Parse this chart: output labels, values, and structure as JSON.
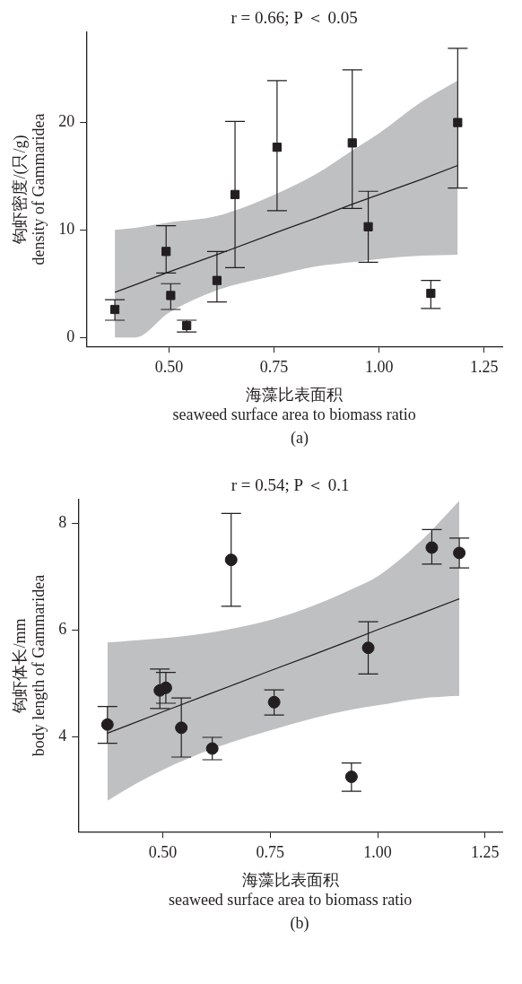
{
  "chart_data": [
    {
      "type": "scatter",
      "title": "r = 0.66; P ＜ 0.05",
      "xlabel": "海藻比表面积\nseaweed surface area to biomass ratio",
      "ylabel": "钩虾密度/(只/g)\ndensity of Gammaridea",
      "annotations": [
        "(a)"
      ],
      "legend": false,
      "grid": false,
      "xlim": [
        0.303,
        1.293
      ],
      "ylim": [
        -0.84,
        28.4
      ],
      "xticks": [
        {
          "value": 0.5,
          "label": "0.50"
        },
        {
          "value": 0.75,
          "label": "0.75"
        },
        {
          "value": 1.0,
          "label": "1.00"
        },
        {
          "value": 1.25,
          "label": "1.25"
        }
      ],
      "yticks": [
        0,
        10,
        20
      ],
      "series": [
        {
          "marker": "square",
          "color": "#231f20",
          "x": [
            0.371,
            0.493,
            0.504,
            0.542,
            0.614,
            0.657,
            0.757,
            0.936,
            0.974,
            1.123,
            1.187
          ],
          "values": [
            2.6,
            8.0,
            3.9,
            1.1,
            5.3,
            13.3,
            17.7,
            18.1,
            10.3,
            4.1,
            20.0
          ],
          "errors": [
            [
              1.6,
              3.5
            ],
            [
              6.0,
              10.4
            ],
            [
              2.6,
              5.0
            ],
            [
              0.5,
              1.6
            ],
            [
              3.3,
              8.0
            ],
            [
              6.5,
              20.1
            ],
            [
              11.8,
              23.9
            ],
            [
              12.0,
              24.9
            ],
            [
              7.0,
              13.6
            ],
            [
              2.7,
              5.3
            ],
            [
              13.9,
              26.9
            ]
          ]
        },
        {
          "type": "line",
          "marker": "none",
          "color": "#231f20",
          "x": [
            0.371,
            0.42,
            0.5,
            0.614,
            0.757,
            0.85,
            0.936,
            1.0,
            1.1,
            1.187
          ],
          "values": [
            4.2,
            4.9,
            6.1,
            7.7,
            9.8,
            11.1,
            12.4,
            13.3,
            14.7,
            16.0
          ],
          "upper": [
            10.0,
            10.2,
            10.7,
            11.3,
            13.4,
            15.2,
            17.4,
            19.0,
            21.9,
            23.9
          ],
          "lower": [
            0,
            0,
            2.3,
            4.4,
            5.8,
            6.6,
            7.0,
            7.3,
            7.6,
            7.7
          ]
        }
      ]
    },
    {
      "type": "scatter",
      "title": "r = 0.54; P ＜ 0.1",
      "xlabel": "海藻比表面积\nseaweed surface area to biomass ratio",
      "ylabel": "钩虾体长/mm\nbody length of Gammaridea",
      "annotations": [
        "(b)"
      ],
      "legend": false,
      "grid": false,
      "xlim": [
        0.303,
        1.29
      ],
      "ylim": [
        2.22,
        8.45
      ],
      "xticks": [
        {
          "value": 0.5,
          "label": "0.50"
        },
        {
          "value": 0.75,
          "label": "0.75"
        },
        {
          "value": 1.0,
          "label": "1.00"
        },
        {
          "value": 1.25,
          "label": "1.25"
        }
      ],
      "yticks": [
        4,
        6,
        8
      ],
      "series": [
        {
          "marker": "circle",
          "color": "#231f20",
          "x": [
            0.371,
            0.493,
            0.507,
            0.543,
            0.615,
            0.659,
            0.759,
            0.939,
            0.978,
            1.126,
            1.19
          ],
          "values": [
            4.23,
            4.87,
            4.92,
            4.17,
            3.78,
            7.32,
            4.65,
            3.25,
            5.67,
            7.55,
            7.45
          ],
          "errors": [
            [
              3.88,
              4.57
            ],
            [
              4.53,
              5.27
            ],
            [
              4.63,
              5.21
            ],
            [
              3.62,
              4.73
            ],
            [
              3.57,
              3.99
            ],
            [
              6.45,
              8.19
            ],
            [
              4.41,
              4.88
            ],
            [
              2.98,
              3.51
            ],
            [
              5.18,
              6.16
            ],
            [
              7.24,
              7.89
            ],
            [
              7.17,
              7.73
            ]
          ]
        },
        {
          "type": "line",
          "marker": "none",
          "color": "#231f20",
          "x": [
            0.371,
            0.42,
            0.5,
            0.614,
            0.75,
            0.85,
            0.94,
            1.0,
            1.1,
            1.19
          ],
          "values": [
            4.07,
            4.22,
            4.47,
            4.82,
            5.24,
            5.54,
            5.82,
            6.01,
            6.31,
            6.59
          ],
          "upper": [
            5.77,
            5.8,
            5.85,
            5.96,
            6.19,
            6.46,
            6.77,
            7.01,
            7.67,
            8.43
          ],
          "lower": [
            2.8,
            3.04,
            3.38,
            3.77,
            4.12,
            4.35,
            4.51,
            4.59,
            4.72,
            4.77
          ]
        }
      ]
    }
  ]
}
